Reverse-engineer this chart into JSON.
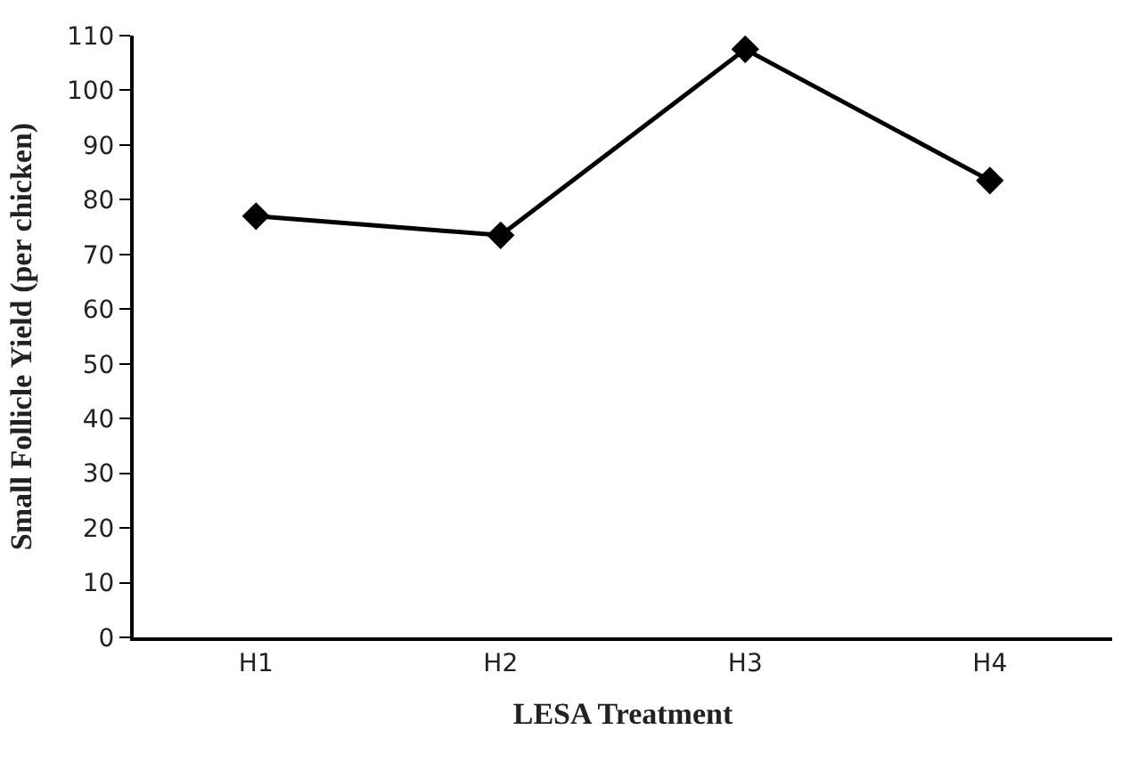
{
  "chart_data": {
    "type": "line",
    "xlabel": "LESA Treatment",
    "ylabel": "Small Follicle Yield (per chicken)",
    "categories": [
      "H1",
      "H2",
      "H3",
      "H4"
    ],
    "series": [
      {
        "color": "#000000",
        "values": [
          77,
          73.5,
          107.5,
          83.5
        ]
      }
    ],
    "ylim": [
      0,
      110
    ],
    "yticks": [
      0,
      10,
      20,
      30,
      40,
      50,
      60,
      70,
      80,
      90,
      100,
      110
    ],
    "grid": false,
    "legend": false,
    "marker": "diamond",
    "line_style": "solid"
  }
}
